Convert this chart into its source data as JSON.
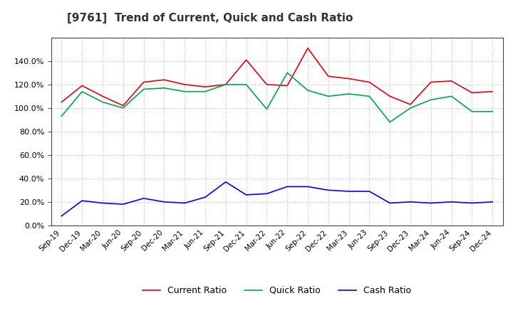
{
  "title": "[9761]  Trend of Current, Quick and Cash Ratio",
  "labels": [
    "Sep-19",
    "Dec-19",
    "Mar-20",
    "Jun-20",
    "Sep-20",
    "Dec-20",
    "Mar-21",
    "Jun-21",
    "Sep-21",
    "Dec-21",
    "Mar-22",
    "Jun-22",
    "Sep-22",
    "Dec-22",
    "Mar-23",
    "Jun-23",
    "Sep-23",
    "Dec-23",
    "Mar-24",
    "Jun-24",
    "Sep-24",
    "Dec-24"
  ],
  "current_ratio": [
    1.05,
    1.19,
    1.1,
    1.02,
    1.22,
    1.24,
    1.2,
    1.18,
    1.2,
    1.41,
    1.2,
    1.19,
    1.51,
    1.27,
    1.25,
    1.22,
    1.1,
    1.03,
    1.22,
    1.23,
    1.13,
    1.14
  ],
  "quick_ratio": [
    0.93,
    1.14,
    1.05,
    1.0,
    1.16,
    1.17,
    1.14,
    1.14,
    1.2,
    1.2,
    0.99,
    1.3,
    1.15,
    1.1,
    1.12,
    1.1,
    0.88,
    1.0,
    1.07,
    1.1,
    0.97,
    0.97
  ],
  "cash_ratio": [
    0.08,
    0.21,
    0.19,
    0.18,
    0.23,
    0.2,
    0.19,
    0.24,
    0.37,
    0.26,
    0.27,
    0.33,
    0.33,
    0.3,
    0.29,
    0.29,
    0.19,
    0.2,
    0.19,
    0.2,
    0.19,
    0.2
  ],
  "current_color": "#e8000d",
  "quick_color": "#00a550",
  "cash_color": "#0000ff",
  "ylim": [
    0.0,
    1.6
  ],
  "yticks": [
    0.0,
    0.2,
    0.4,
    0.6,
    0.8,
    1.0,
    1.2,
    1.4
  ],
  "background_color": "#ffffff",
  "grid_color": "#bbbbbb",
  "legend_labels": [
    "Current Ratio",
    "Quick Ratio",
    "Cash Ratio"
  ]
}
